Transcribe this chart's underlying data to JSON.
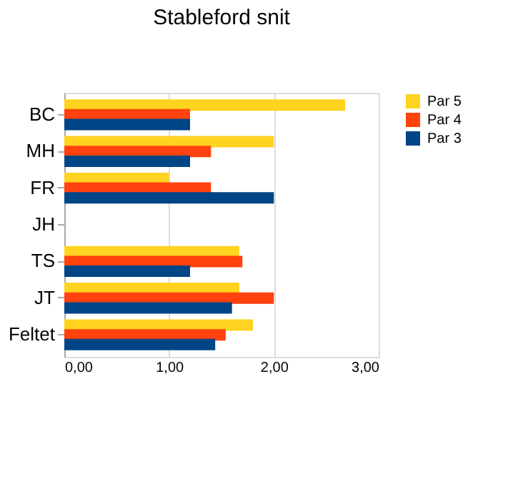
{
  "chart_data": {
    "type": "bar",
    "orientation": "horizontal",
    "title": "Stableford snit",
    "categories": [
      "BC",
      "MH",
      "FR",
      "JH",
      "TS",
      "JT",
      "Feltet"
    ],
    "series": [
      {
        "name": "Par 5",
        "color": "#ffd320",
        "values": [
          2.68,
          2.0,
          1.0,
          null,
          1.67,
          1.67,
          1.8
        ]
      },
      {
        "name": "Par 4",
        "color": "#ff420e",
        "values": [
          1.2,
          1.4,
          1.4,
          null,
          1.7,
          2.0,
          1.54
        ]
      },
      {
        "name": "Par 3",
        "color": "#004586",
        "values": [
          1.2,
          1.2,
          2.0,
          null,
          1.2,
          1.6,
          1.44
        ]
      }
    ],
    "xlim": [
      0,
      3
    ],
    "xticks": [
      {
        "value": 0,
        "label": "0,00"
      },
      {
        "value": 1,
        "label": "1,00"
      },
      {
        "value": 2,
        "label": "2,00"
      },
      {
        "value": 3,
        "label": "3,00"
      }
    ],
    "grid": "x",
    "legend": "right"
  }
}
